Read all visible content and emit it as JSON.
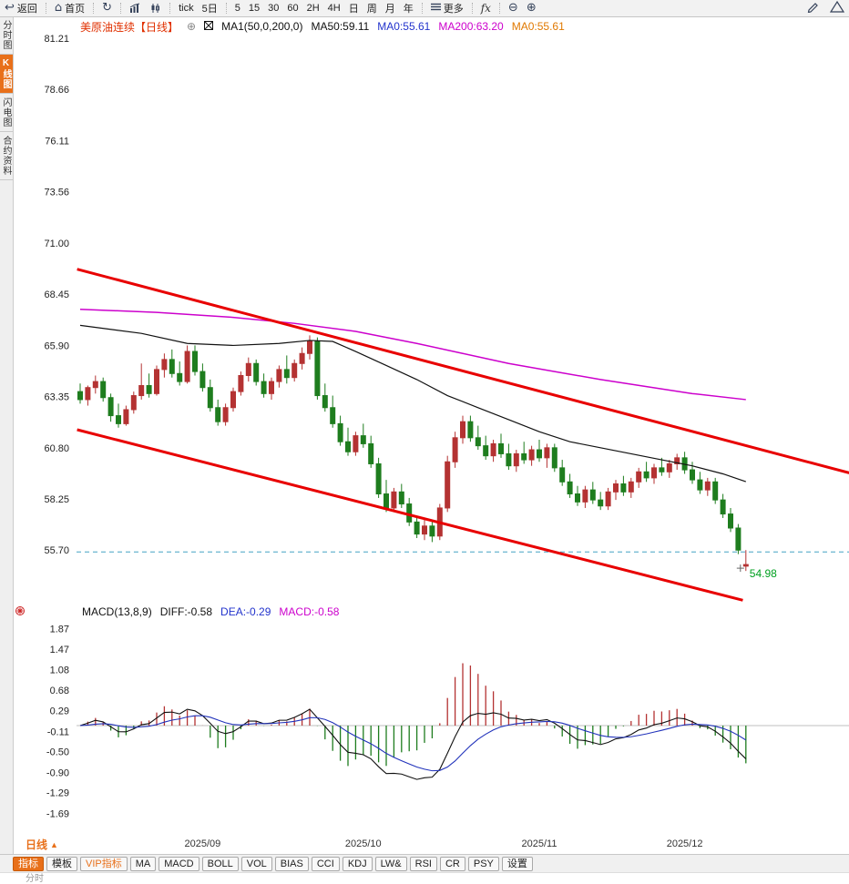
{
  "toolbar": {
    "back": "返回",
    "home": "首页",
    "tick": "tick",
    "five_day": "5日",
    "periods": [
      "5",
      "15",
      "30",
      "60",
      "2H",
      "4H",
      "日",
      "周",
      "月",
      "年"
    ],
    "more": "更多",
    "fx": "fx"
  },
  "sidebar": {
    "tabs": [
      "分时图",
      "K线图",
      "闪电图",
      "合约资料"
    ],
    "active": "K线图"
  },
  "price_header": {
    "title": "美原油连续【日线】",
    "ma_settings": "MA1(50,0,200,0)",
    "ma50": "MA50:59.11",
    "ma0_blue": "MA0:55.61",
    "ma200": "MA200:63.20",
    "ma0_orange": "MA0:55.61"
  },
  "macd_header": {
    "title": "MACD(13,8,9)",
    "diff": "DIFF:-0.58",
    "dea": "DEA:-0.29",
    "macd": "MACD:-0.58"
  },
  "period_selector": "日线",
  "bottom": {
    "tabs": [
      "指标",
      "模板",
      "VIP指标"
    ],
    "indicators": [
      "MA",
      "MACD",
      "BOLL",
      "VOL",
      "BIAS",
      "CCI",
      "KDJ",
      "LW&",
      "RSI",
      "CR",
      "PSY"
    ],
    "settings": "设置",
    "status": "分时"
  },
  "chart_data": {
    "type": "candlestick+macd",
    "symbol": "美原油连续",
    "period": "日线",
    "price_axis": [
      "81.21",
      "78.66",
      "76.11",
      "73.56",
      "71.00",
      "68.45",
      "65.90",
      "63.35",
      "60.80",
      "58.25",
      "55.70"
    ],
    "macd_axis": [
      "1.87",
      "1.47",
      "1.08",
      "0.68",
      "0.29",
      "-0.11",
      "-0.50",
      "-0.90",
      "-1.29",
      "-1.69"
    ],
    "months": [
      {
        "index": 16,
        "label": "2025/09"
      },
      {
        "index": 37,
        "label": "2025/10"
      },
      {
        "index": 60,
        "label": "2025/11"
      },
      {
        "index": 79,
        "label": "2025/12"
      }
    ],
    "dashed_level": 55.61,
    "last_price": 54.98,
    "last_price_label": "54.98",
    "macd_params": {
      "short": 8,
      "long": 13,
      "mid": 9
    },
    "candles": [
      [
        63.6,
        64.0,
        63.0,
        63.2
      ],
      [
        63.2,
        63.9,
        62.9,
        63.8
      ],
      [
        63.8,
        64.4,
        63.5,
        64.1
      ],
      [
        64.1,
        64.3,
        63.1,
        63.3
      ],
      [
        63.3,
        63.5,
        62.1,
        62.4
      ],
      [
        62.4,
        63.0,
        61.8,
        62.0
      ],
      [
        62.0,
        62.9,
        61.9,
        62.7
      ],
      [
        62.7,
        63.6,
        62.5,
        63.4
      ],
      [
        63.4,
        65.0,
        63.2,
        63.9
      ],
      [
        63.9,
        64.5,
        63.3,
        63.5
      ],
      [
        63.5,
        64.9,
        63.4,
        64.7
      ],
      [
        64.7,
        65.5,
        64.3,
        65.2
      ],
      [
        65.2,
        65.7,
        64.3,
        64.5
      ],
      [
        64.5,
        65.1,
        63.9,
        64.1
      ],
      [
        64.1,
        65.9,
        64.0,
        65.6
      ],
      [
        65.6,
        65.9,
        64.4,
        64.6
      ],
      [
        64.6,
        65.0,
        63.6,
        63.8
      ],
      [
        63.8,
        64.2,
        62.6,
        62.8
      ],
      [
        62.8,
        63.2,
        61.9,
        62.1
      ],
      [
        62.1,
        63.0,
        61.9,
        62.8
      ],
      [
        62.8,
        63.8,
        62.6,
        63.6
      ],
      [
        63.6,
        64.6,
        63.4,
        64.4
      ],
      [
        64.4,
        65.3,
        64.1,
        65.0
      ],
      [
        65.0,
        65.2,
        63.9,
        64.1
      ],
      [
        64.1,
        64.5,
        63.3,
        63.5
      ],
      [
        63.5,
        64.3,
        63.2,
        64.1
      ],
      [
        64.1,
        64.9,
        63.8,
        64.7
      ],
      [
        64.7,
        65.4,
        64.0,
        64.3
      ],
      [
        64.3,
        65.2,
        64.1,
        65.0
      ],
      [
        65.0,
        65.8,
        64.7,
        65.5
      ],
      [
        65.5,
        66.4,
        65.2,
        66.1
      ],
      [
        66.1,
        66.3,
        63.2,
        63.4
      ],
      [
        63.4,
        64.0,
        62.6,
        62.8
      ],
      [
        62.8,
        63.4,
        61.8,
        62.0
      ],
      [
        62.0,
        62.4,
        60.9,
        61.1
      ],
      [
        61.1,
        61.8,
        60.4,
        60.6
      ],
      [
        60.6,
        61.6,
        60.4,
        61.4
      ],
      [
        61.4,
        62.0,
        60.8,
        61.0
      ],
      [
        61.0,
        61.4,
        59.8,
        60.0
      ],
      [
        60.0,
        60.3,
        58.3,
        58.5
      ],
      [
        58.5,
        59.2,
        57.6,
        57.8
      ],
      [
        57.8,
        58.8,
        57.6,
        58.6
      ],
      [
        58.6,
        59.0,
        57.8,
        58.0
      ],
      [
        58.0,
        58.3,
        56.9,
        57.1
      ],
      [
        57.1,
        57.4,
        56.3,
        56.5
      ],
      [
        56.5,
        57.2,
        56.2,
        56.9
      ],
      [
        56.9,
        57.1,
        56.1,
        56.4
      ],
      [
        56.4,
        58.0,
        56.2,
        57.8
      ],
      [
        57.8,
        60.4,
        57.6,
        60.1
      ],
      [
        60.1,
        61.6,
        59.8,
        61.3
      ],
      [
        61.3,
        62.4,
        61.0,
        62.1
      ],
      [
        62.1,
        62.4,
        61.1,
        61.3
      ],
      [
        61.3,
        61.9,
        60.7,
        60.9
      ],
      [
        60.9,
        61.4,
        60.2,
        60.4
      ],
      [
        60.4,
        61.2,
        60.1,
        61.0
      ],
      [
        61.0,
        61.5,
        60.3,
        60.5
      ],
      [
        60.5,
        61.0,
        59.7,
        59.9
      ],
      [
        59.9,
        60.7,
        59.6,
        60.5
      ],
      [
        60.5,
        61.1,
        60.0,
        60.2
      ],
      [
        60.2,
        60.9,
        59.9,
        60.7
      ],
      [
        60.7,
        61.2,
        60.1,
        60.3
      ],
      [
        60.3,
        61.0,
        59.8,
        60.8
      ],
      [
        60.8,
        61.0,
        59.6,
        59.8
      ],
      [
        59.8,
        60.2,
        58.9,
        59.1
      ],
      [
        59.1,
        59.5,
        58.3,
        58.5
      ],
      [
        58.5,
        58.9,
        57.9,
        58.1
      ],
      [
        58.1,
        58.9,
        57.8,
        58.7
      ],
      [
        58.7,
        59.1,
        58.0,
        58.2
      ],
      [
        58.2,
        58.6,
        57.7,
        57.9
      ],
      [
        57.9,
        58.8,
        57.7,
        58.6
      ],
      [
        58.6,
        59.2,
        58.2,
        59.0
      ],
      [
        59.0,
        59.4,
        58.4,
        58.6
      ],
      [
        58.6,
        59.3,
        58.3,
        59.1
      ],
      [
        59.1,
        59.8,
        58.8,
        59.6
      ],
      [
        59.6,
        60.1,
        59.1,
        59.3
      ],
      [
        59.3,
        60.0,
        59.0,
        59.8
      ],
      [
        59.8,
        60.3,
        59.4,
        59.6
      ],
      [
        59.6,
        60.2,
        59.3,
        60.0
      ],
      [
        60.0,
        60.5,
        59.7,
        60.3
      ],
      [
        60.3,
        60.6,
        59.5,
        59.7
      ],
      [
        59.7,
        60.1,
        59.0,
        59.2
      ],
      [
        59.2,
        59.6,
        58.5,
        58.7
      ],
      [
        58.7,
        59.3,
        58.4,
        59.1
      ],
      [
        59.1,
        59.3,
        58.0,
        58.2
      ],
      [
        58.2,
        58.5,
        57.3,
        57.5
      ],
      [
        57.5,
        57.8,
        56.6,
        56.8
      ],
      [
        56.8,
        57.0,
        55.5,
        55.7
      ],
      [
        54.9,
        55.7,
        54.66,
        54.98
      ]
    ],
    "ma50": [
      [
        0,
        66.9
      ],
      [
        8,
        66.5
      ],
      [
        14,
        66.0
      ],
      [
        20,
        65.9
      ],
      [
        26,
        66.0
      ],
      [
        30,
        66.15
      ],
      [
        33,
        66.1
      ],
      [
        36,
        65.6
      ],
      [
        40,
        64.9
      ],
      [
        44,
        64.2
      ],
      [
        48,
        63.4
      ],
      [
        52,
        62.8
      ],
      [
        56,
        62.2
      ],
      [
        60,
        61.6
      ],
      [
        64,
        61.1
      ],
      [
        68,
        60.8
      ],
      [
        72,
        60.5
      ],
      [
        76,
        60.2
      ],
      [
        80,
        59.9
      ],
      [
        84,
        59.5
      ],
      [
        87,
        59.11
      ]
    ],
    "ma200": [
      [
        0,
        67.7
      ],
      [
        10,
        67.55
      ],
      [
        20,
        67.3
      ],
      [
        28,
        67.0
      ],
      [
        36,
        66.6
      ],
      [
        44,
        66.0
      ],
      [
        50,
        65.5
      ],
      [
        56,
        65.0
      ],
      [
        62,
        64.6
      ],
      [
        68,
        64.2
      ],
      [
        74,
        63.85
      ],
      [
        80,
        63.5
      ],
      [
        87,
        63.2
      ]
    ],
    "trendlines": [
      {
        "i1": -0.4,
        "p1": 69.7,
        "i2": 100.5,
        "p2": 59.55
      },
      {
        "i1": -0.4,
        "p1": 61.7,
        "i2": 86.6,
        "p2": 53.2
      }
    ],
    "colors": {
      "up": "#b43232",
      "down": "#1e7d1e",
      "ma50": "#111111",
      "ma200": "#cc00cc",
      "diff": "#111111",
      "dea": "#2233bb",
      "trend": "#e80000",
      "dashed": "#44a2c4",
      "last_label": "#00a020",
      "accent": "#e8701a"
    }
  }
}
